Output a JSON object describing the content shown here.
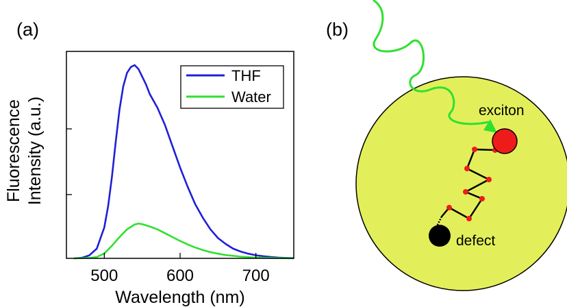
{
  "panels": {
    "a_label": "(a)",
    "b_label": "(b)"
  },
  "chart_data": {
    "type": "line",
    "title": "",
    "xlabel": "Wavelength (nm)",
    "ylabel_line1": "Fluorescence",
    "ylabel_line2": "Intensity (a.u.)",
    "xlim": [
      450,
      750
    ],
    "ylim": [
      0,
      1.0
    ],
    "xticks": [
      500,
      600,
      700
    ],
    "xtick_labels": [
      "500",
      "600",
      "700"
    ],
    "yticks": [
      0.33,
      0.67
    ],
    "legend_position": "top-right",
    "series": [
      {
        "name": "THF",
        "color": "#1f1fd6",
        "x": [
          460,
          470,
          480,
          490,
          500,
          505,
          510,
          515,
          520,
          525,
          530,
          535,
          540,
          545,
          550,
          555,
          560,
          570,
          580,
          590,
          600,
          610,
          620,
          630,
          640,
          650,
          660,
          670,
          680,
          690,
          700,
          710,
          720,
          730,
          740,
          750
        ],
        "y": [
          0.0,
          0.003,
          0.015,
          0.05,
          0.16,
          0.27,
          0.42,
          0.6,
          0.77,
          0.89,
          0.96,
          0.99,
          1.0,
          0.98,
          0.94,
          0.9,
          0.85,
          0.78,
          0.69,
          0.58,
          0.47,
          0.37,
          0.28,
          0.21,
          0.15,
          0.105,
          0.075,
          0.05,
          0.035,
          0.024,
          0.016,
          0.011,
          0.007,
          0.004,
          0.002,
          0.001
        ]
      },
      {
        "name": "Water",
        "color": "#2fe02f",
        "x": [
          460,
          480,
          490,
          500,
          510,
          520,
          530,
          540,
          545,
          550,
          560,
          570,
          580,
          590,
          600,
          610,
          620,
          630,
          640,
          650,
          660,
          680,
          700,
          720,
          750
        ],
        "y": [
          0.0,
          0.002,
          0.007,
          0.025,
          0.065,
          0.11,
          0.15,
          0.175,
          0.18,
          0.177,
          0.165,
          0.15,
          0.13,
          0.11,
          0.09,
          0.072,
          0.056,
          0.043,
          0.032,
          0.024,
          0.017,
          0.009,
          0.004,
          0.002,
          0.0
        ]
      }
    ]
  },
  "diagram": {
    "circle_fill": "#e3ef5a",
    "photon_color": "#2fe02f",
    "exciton_color": "#ee1b1b",
    "defect_color": "#000000",
    "exciton_label": "exciton",
    "defect_label": "defect"
  }
}
